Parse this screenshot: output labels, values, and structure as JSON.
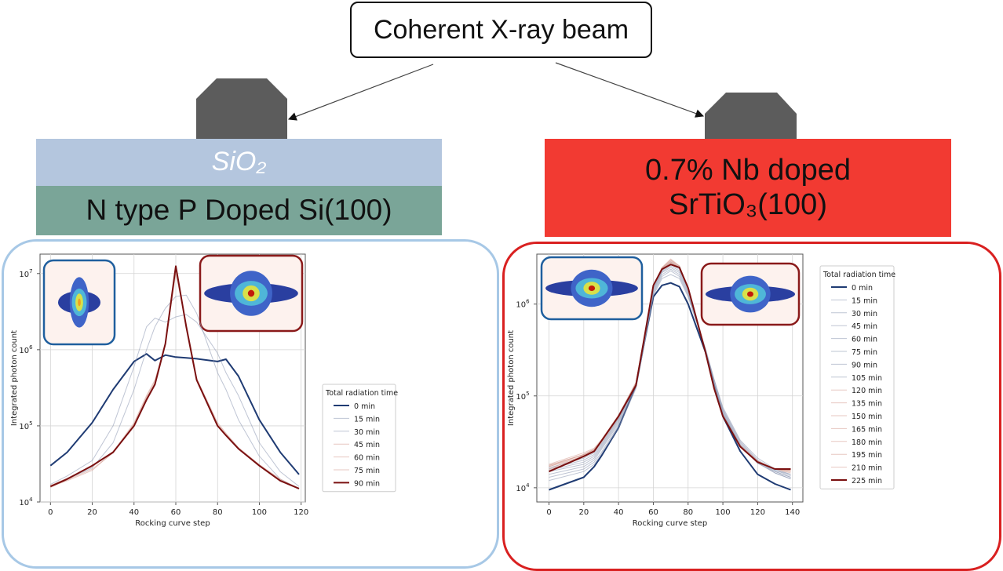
{
  "beam_label": "Coherent X-ray beam",
  "left_sample": {
    "top_layer": "SiO₂",
    "substrate": "N type P Doped Si(100)"
  },
  "right_sample": {
    "line1": "0.7% Nb doped",
    "line2": "SrTiO₃(100)"
  },
  "colors": {
    "sio2": "#b4c6de",
    "si": "#7aa598",
    "sto": "#f23a32",
    "left_panel_border": "#a7c8e6",
    "right_panel_border": "#d92020",
    "first_series": "#1f3b73",
    "last_series": "#7a1010"
  },
  "chart_data": [
    {
      "type": "line",
      "title": "",
      "xlabel": "Rocking curve step",
      "ylabel": "Integrated photon count",
      "yscale": "log",
      "xlim": [
        -5,
        122
      ],
      "ylim": [
        10000,
        18000000
      ],
      "xticks": [
        0,
        20,
        40,
        60,
        80,
        100,
        120
      ],
      "yticks_exp": [
        4,
        5,
        6,
        7
      ],
      "grid": true,
      "legend_title": "Total radiation time",
      "legend_position": "right",
      "x": [
        0,
        8,
        20,
        30,
        40,
        46,
        50,
        55,
        60,
        65,
        70,
        80,
        84,
        90,
        100,
        110,
        119
      ],
      "series": [
        {
          "name": "0 min",
          "values": [
            30000,
            45000,
            110000,
            300000,
            700000,
            880000,
            720000,
            850000,
            800000,
            780000,
            760000,
            700000,
            750000,
            450000,
            120000,
            45000,
            23000
          ]
        },
        {
          "name": "15 min",
          "values": [
            17000,
            22000,
            35000,
            100000,
            600000,
            2000000,
            2600000,
            2300000,
            2700000,
            2900000,
            2300000,
            900000,
            500000,
            250000,
            60000,
            25000,
            16000
          ]
        },
        {
          "name": "30 min",
          "values": [
            16000,
            20000,
            28000,
            60000,
            300000,
            1000000,
            2000000,
            3500000,
            5000000,
            5200000,
            3000000,
            500000,
            300000,
            120000,
            40000,
            20000,
            15000
          ]
        },
        {
          "name": "45 min",
          "values": [
            16000,
            19000,
            26000,
            45000,
            110000,
            250000,
            400000,
            1200000,
            10000000,
            2200000,
            420000,
            110000,
            80000,
            52000,
            31000,
            20000,
            15000
          ]
        },
        {
          "name": "60 min",
          "values": [
            15500,
            19500,
            27000,
            44000,
            105000,
            240000,
            380000,
            1150000,
            11000000,
            2100000,
            410000,
            105000,
            78000,
            50000,
            30000,
            19500,
            15000
          ]
        },
        {
          "name": "75 min",
          "values": [
            16500,
            20500,
            29000,
            46000,
            102000,
            230000,
            360000,
            1180000,
            12000000,
            2050000,
            405000,
            102000,
            76000,
            50000,
            30000,
            19000,
            15000
          ]
        },
        {
          "name": "90 min",
          "values": [
            16000,
            20000,
            30000,
            45000,
            100000,
            220000,
            350000,
            1200000,
            12500000,
            2000000,
            400000,
            100000,
            75000,
            50000,
            30000,
            19000,
            15000
          ]
        }
      ]
    },
    {
      "type": "line",
      "title": "",
      "xlabel": "Rocking curve step",
      "ylabel": "Integrated photon count",
      "yscale": "log",
      "xlim": [
        -7,
        146
      ],
      "ylim": [
        7000,
        3500000
      ],
      "xticks": [
        0,
        20,
        40,
        60,
        80,
        100,
        120,
        140
      ],
      "yticks_exp": [
        4,
        5,
        6
      ],
      "grid": true,
      "legend_title": "Total radiation time",
      "legend_position": "right",
      "x": [
        0,
        20,
        26,
        30,
        40,
        50,
        55,
        60,
        65,
        70,
        75,
        80,
        90,
        95,
        100,
        110,
        120,
        130,
        139
      ],
      "series": [
        {
          "name": "0 min",
          "values": [
            9500,
            13000,
            17000,
            22000,
            45000,
            130000,
            400000,
            1200000,
            1600000,
            1700000,
            1550000,
            1000000,
            300000,
            130000,
            60000,
            25000,
            14000,
            11000,
            9500
          ]
        },
        {
          "name": "15 min",
          "values": [
            12000,
            15000,
            18000,
            23000,
            45000,
            120000,
            380000,
            1250000,
            1900000,
            2100000,
            1900000,
            1200000,
            320000,
            150000,
            75000,
            33000,
            21000,
            16000,
            14000
          ]
        },
        {
          "name": "30 min",
          "values": [
            13000,
            16000,
            19000,
            24000,
            48000,
            125000,
            390000,
            1300000,
            2000000,
            2300000,
            2000000,
            1250000,
            330000,
            150000,
            72000,
            32000,
            20000,
            15500,
            13500
          ]
        },
        {
          "name": "45 min",
          "values": [
            14000,
            17000,
            20000,
            26000,
            50000,
            130000,
            400000,
            1350000,
            2100000,
            2400000,
            2100000,
            1300000,
            320000,
            140000,
            70000,
            31000,
            19500,
            15000,
            13000
          ]
        },
        {
          "name": "60 min",
          "values": [
            15000,
            18000,
            21000,
            27000,
            52000,
            135000,
            410000,
            1400000,
            2200000,
            2500000,
            2200000,
            1350000,
            310000,
            135000,
            68000,
            30000,
            19000,
            14500,
            12500
          ]
        },
        {
          "name": "75 min",
          "values": [
            15500,
            19000,
            22000,
            28000,
            54000,
            135000,
            420000,
            1450000,
            2250000,
            2600000,
            2300000,
            1400000,
            300000,
            130000,
            66000,
            29000,
            18500,
            14500,
            12500
          ]
        },
        {
          "name": "90 min",
          "values": [
            16000,
            20000,
            23000,
            29000,
            56000,
            137000,
            430000,
            1500000,
            2300000,
            2700000,
            2400000,
            1450000,
            300000,
            128000,
            64000,
            29000,
            18500,
            15000,
            13000
          ]
        },
        {
          "name": "105 min",
          "values": [
            16500,
            21000,
            24000,
            30000,
            57000,
            138000,
            440000,
            1550000,
            2400000,
            2900000,
            2500000,
            1500000,
            305000,
            126000,
            63000,
            29000,
            19000,
            15500,
            14000
          ]
        },
        {
          "name": "120 min",
          "values": [
            17000,
            22000,
            25000,
            31000,
            58000,
            138000,
            440000,
            1600000,
            2500000,
            3000000,
            2600000,
            1500000,
            305000,
            125000,
            62000,
            29000,
            19500,
            16000,
            14500
          ]
        },
        {
          "name": "135 min",
          "values": [
            17500,
            23000,
            26000,
            32000,
            60000,
            140000,
            450000,
            1600000,
            2500000,
            3100000,
            2600000,
            1500000,
            300000,
            124000,
            61000,
            28500,
            19500,
            16000,
            15000
          ]
        },
        {
          "name": "150 min",
          "values": [
            18000,
            24000,
            27000,
            33000,
            62000,
            140000,
            455000,
            1600000,
            2450000,
            3000000,
            2550000,
            1500000,
            300000,
            123000,
            61000,
            28500,
            19500,
            16000,
            15000
          ]
        },
        {
          "name": "165 min",
          "values": [
            17500,
            23000,
            26500,
            32500,
            61000,
            138000,
            450000,
            1600000,
            2450000,
            2900000,
            2500000,
            1500000,
            300000,
            122000,
            60000,
            28500,
            19000,
            16000,
            15500
          ]
        },
        {
          "name": "180 min",
          "values": [
            17000,
            23000,
            26000,
            32000,
            61000,
            136000,
            450000,
            1600000,
            2400000,
            2850000,
            2500000,
            1500000,
            300000,
            121000,
            60000,
            28000,
            19000,
            16000,
            15500
          ]
        },
        {
          "name": "195 min",
          "values": [
            16000,
            22500,
            25500,
            32000,
            60000,
            134000,
            450000,
            1600000,
            2400000,
            2800000,
            2500000,
            1500000,
            300000,
            120000,
            60000,
            28000,
            19000,
            16000,
            15500
          ]
        },
        {
          "name": "210 min",
          "values": [
            15500,
            22000,
            25000,
            32000,
            60000,
            132000,
            450000,
            1600000,
            2400000,
            2750000,
            2500000,
            1500000,
            300000,
            120000,
            60000,
            28000,
            19000,
            16000,
            16000
          ]
        },
        {
          "name": "225 min",
          "values": [
            15000,
            22000,
            25000,
            32000,
            60000,
            130000,
            450000,
            1600000,
            2400000,
            2700000,
            2500000,
            1500000,
            300000,
            120000,
            60000,
            28000,
            19000,
            16000,
            16000
          ]
        }
      ]
    }
  ]
}
